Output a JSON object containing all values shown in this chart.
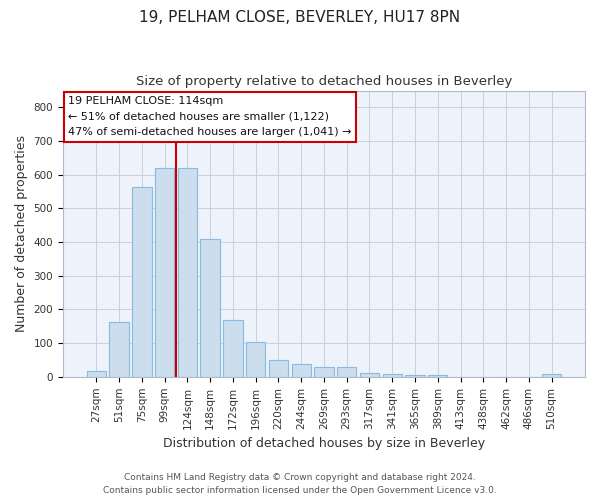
{
  "title": "19, PELHAM CLOSE, BEVERLEY, HU17 8PN",
  "subtitle": "Size of property relative to detached houses in Beverley",
  "xlabel": "Distribution of detached houses by size in Beverley",
  "ylabel": "Number of detached properties",
  "footer_line1": "Contains HM Land Registry data © Crown copyright and database right 2024.",
  "footer_line2": "Contains public sector information licensed under the Open Government Licence v3.0.",
  "bar_labels": [
    "27sqm",
    "51sqm",
    "75sqm",
    "99sqm",
    "124sqm",
    "148sqm",
    "172sqm",
    "196sqm",
    "220sqm",
    "244sqm",
    "269sqm",
    "293sqm",
    "317sqm",
    "341sqm",
    "365sqm",
    "389sqm",
    "413sqm",
    "438sqm",
    "462sqm",
    "486sqm",
    "510sqm"
  ],
  "bar_values": [
    18,
    163,
    563,
    619,
    619,
    410,
    170,
    102,
    50,
    38,
    30,
    30,
    12,
    8,
    5,
    5,
    0,
    0,
    0,
    0,
    8
  ],
  "bar_color": "#ccdded",
  "bar_edge_color": "#88bbe0",
  "vline_x_index": 4,
  "vline_color": "#cc0000",
  "ann_line1": "19 PELHAM CLOSE: 114sqm",
  "ann_line2": "← 51% of detached houses are smaller (1,122)",
  "ann_line3": "47% of semi-detached houses are larger (1,041) →",
  "ylim": [
    0,
    850
  ],
  "yticks": [
    0,
    100,
    200,
    300,
    400,
    500,
    600,
    700,
    800
  ],
  "grid_color": "#c8d0e0",
  "bg_color": "#ffffff",
  "plot_bg_color": "#eef2fa",
  "title_fontsize": 11,
  "subtitle_fontsize": 9.5,
  "axis_label_fontsize": 9,
  "tick_fontsize": 7.5,
  "annotation_fontsize": 8,
  "footer_fontsize": 6.5
}
